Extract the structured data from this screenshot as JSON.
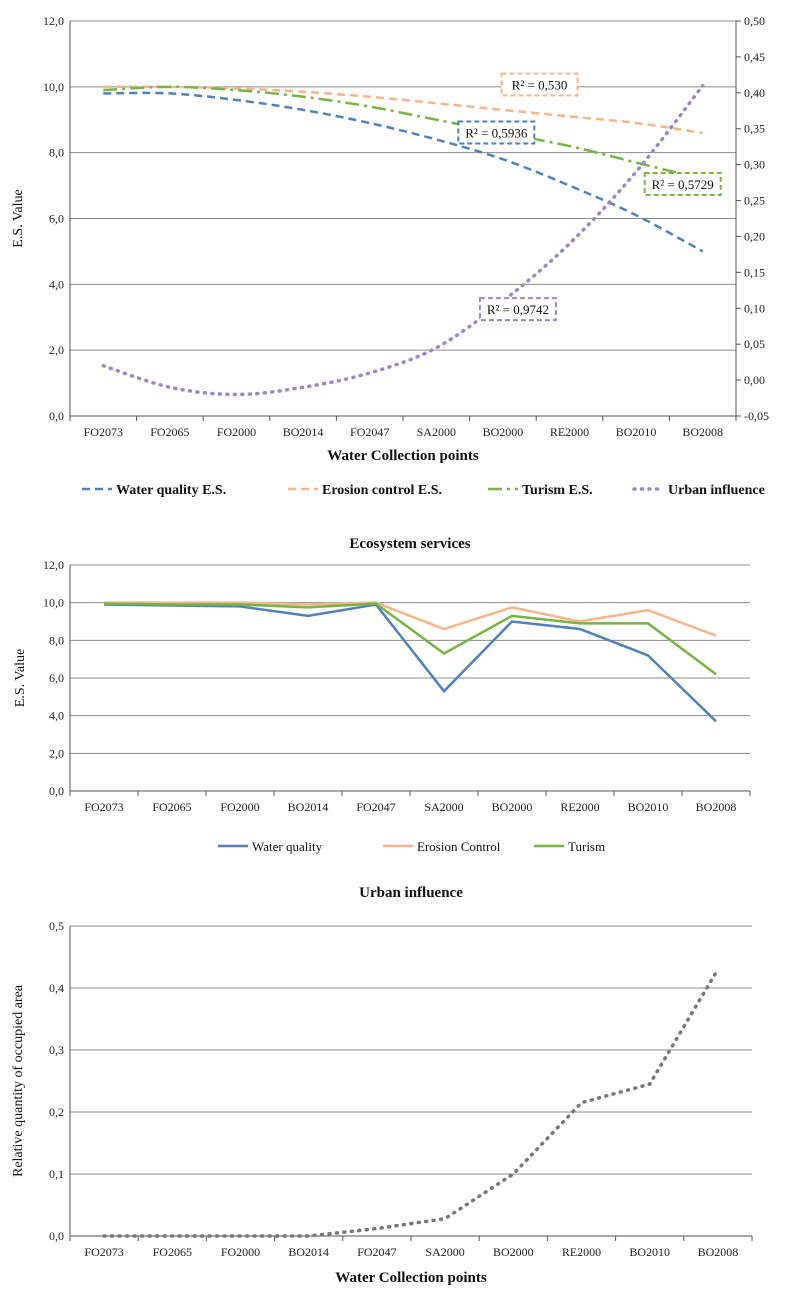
{
  "chart_data": [
    {
      "type": "line",
      "title": "",
      "xlabel": "Water Collection  points",
      "ylabel": "E.S. Value",
      "categories": [
        "FO2073",
        "FO2065",
        "FO2000",
        "BO2014",
        "FO2047",
        "SA2000",
        "BO2000",
        "RE2000",
        "BO2010",
        "BO2008"
      ],
      "ylim": [
        0,
        12
      ],
      "y_ticks": [
        "0,0",
        "2,0",
        "4,0",
        "6,0",
        "8,0",
        "10,0",
        "12,0"
      ],
      "y2lim": [
        -0.05,
        0.5
      ],
      "y2_ticks": [
        "-0,05",
        "0,00",
        "0,05",
        "0,10",
        "0,15",
        "0,20",
        "0,25",
        "0,30",
        "0,35",
        "0,40",
        "0,45",
        "0,50"
      ],
      "grid": true,
      "legend_position": "bottom",
      "series": [
        {
          "name": "Water quality E.S.",
          "axis": "left",
          "color": "#4F81BD",
          "style": "dashed",
          "values": [
            9.8,
            9.8,
            9.6,
            9.3,
            8.9,
            8.4,
            7.8,
            7.0,
            6.1,
            5.0
          ]
        },
        {
          "name": "Erosion control E.S.",
          "axis": "left",
          "color": "#F9B48A",
          "style": "dashed",
          "values": [
            10.0,
            10.0,
            9.95,
            9.85,
            9.7,
            9.5,
            9.3,
            9.1,
            8.9,
            8.6
          ]
        },
        {
          "name": "Turism E.S.",
          "axis": "left",
          "color": "#77B543",
          "style": "dashdot",
          "values": [
            9.9,
            10.0,
            9.9,
            9.7,
            9.4,
            9.0,
            8.6,
            8.2,
            7.7,
            7.2
          ]
        },
        {
          "name": "Urban influence",
          "axis": "right",
          "color": "#9B87C8",
          "style": "dotted",
          "values": [
            0.02,
            -0.01,
            -0.02,
            -0.01,
            0.01,
            0.045,
            0.11,
            0.19,
            0.29,
            0.41
          ]
        }
      ],
      "annotations": [
        {
          "text": "R² = 0,530",
          "color": "#F9B48A"
        },
        {
          "text": "R² = 0,5936",
          "color": "#4F81BD"
        },
        {
          "text": "R² = 0,5729",
          "color": "#77B543"
        },
        {
          "text": "R² = 0,9742",
          "color": "#9B87C8"
        }
      ]
    },
    {
      "type": "line",
      "title": "Ecosystem services",
      "xlabel": "",
      "ylabel": "E.S. Value",
      "categories": [
        "FO2073",
        "FO2065",
        "FO2000",
        "BO2014",
        "FO2047",
        "SA2000",
        "BO2000",
        "RE2000",
        "BO2010",
        "BO2008"
      ],
      "ylim": [
        0,
        12
      ],
      "y_ticks": [
        "0,0",
        "2,0",
        "4,0",
        "6,0",
        "8,0",
        "10,0",
        "12,0"
      ],
      "grid": true,
      "legend_position": "bottom",
      "series": [
        {
          "name": "Water quality",
          "color": "#4F81BD",
          "values": [
            9.9,
            9.85,
            9.8,
            9.3,
            9.9,
            5.3,
            9.0,
            8.6,
            7.2,
            3.7
          ]
        },
        {
          "name": "Erosion Control",
          "color": "#F9B48A",
          "values": [
            10.0,
            10.0,
            10.0,
            9.9,
            10.0,
            8.6,
            9.75,
            9.0,
            9.6,
            8.25
          ]
        },
        {
          "name": "Turism",
          "color": "#77B543",
          "values": [
            9.95,
            9.9,
            9.9,
            9.75,
            9.95,
            7.3,
            9.3,
            8.9,
            8.9,
            6.2
          ]
        }
      ]
    },
    {
      "type": "line",
      "title": "Urban influence",
      "xlabel": "Water Collection  points",
      "ylabel": "Relative quantity of occupied area",
      "categories": [
        "FO2073",
        "FO2065",
        "FO2000",
        "BO2014",
        "FO2047",
        "SA2000",
        "BO2000",
        "RE2000",
        "BO2010",
        "BO2008"
      ],
      "ylim": [
        0,
        0.5
      ],
      "y_ticks": [
        "0,0",
        "0,1",
        "0,2",
        "0,3",
        "0,4",
        "0,5"
      ],
      "grid": true,
      "series": [
        {
          "name": "",
          "color": "#777777",
          "style": "dotted",
          "values": [
            0.0,
            0.0,
            0.0,
            0.0,
            0.012,
            0.028,
            0.1,
            0.215,
            0.245,
            0.43
          ]
        }
      ]
    }
  ]
}
